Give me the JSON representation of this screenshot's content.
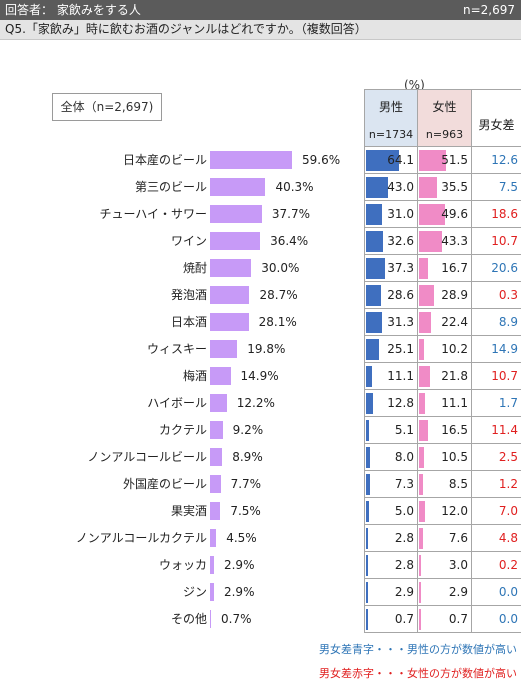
{
  "header": {
    "left": "回答者： 家飲みをする人",
    "right": "n=2,697"
  },
  "question": "Q5.「家飲み」時に飲むお酒のジャンルはどれですか。（複数回答）",
  "total_box": "全体（n=2,697)",
  "unit_label": "(%)",
  "table_header": {
    "male": "男性",
    "male_n": "n=1734",
    "female": "女性",
    "female_n": "n=963",
    "diff": "男女差"
  },
  "colors": {
    "total_bar": "#c79af7",
    "male_bar": "#3f6fbf",
    "female_bar": "#f08bc6",
    "diff_male": "#2e75b6",
    "diff_female": "#e02020"
  },
  "notes": {
    "blue": "男女差青字・・・男性の方が数値が高い",
    "red": "男女差赤字・・・女性の方が数値が高い"
  },
  "chart_data": {
    "type": "bar",
    "categories": [
      "日本産のビール",
      "第三のビール",
      "チューハイ・サワー",
      "ワイン",
      "焼酎",
      "発泡酒",
      "日本酒",
      "ウィスキー",
      "梅酒",
      "ハイボール",
      "カクテル",
      "ノンアルコールビール",
      "外国産のビール",
      "果実酒",
      "ノンアルコールカクテル",
      "ウォッカ",
      "ジン",
      "その他"
    ],
    "series": [
      {
        "values": [
          59.6,
          40.3,
          37.7,
          36.4,
          30.0,
          28.7,
          28.1,
          19.8,
          14.9,
          12.2,
          9.2,
          8.9,
          7.7,
          7.5,
          4.5,
          2.9,
          2.9,
          0.7
        ],
        "labels": [
          "59.6%",
          "40.3%",
          "37.7%",
          "36.4%",
          "30.0%",
          "28.7%",
          "28.1%",
          "19.8%",
          "14.9%",
          "12.2%",
          "9.2%",
          "8.9%",
          "7.7%",
          "7.5%",
          "4.5%",
          "2.9%",
          "2.9%",
          "0.7%"
        ]
      },
      {
        "name": "男性",
        "values": [
          64.1,
          43.0,
          31.0,
          32.6,
          37.3,
          28.6,
          31.3,
          25.1,
          11.1,
          12.8,
          5.1,
          8.0,
          7.3,
          5.0,
          2.8,
          2.8,
          2.9,
          0.7
        ],
        "labels": [
          "64.1",
          "43.0",
          "31.0",
          "32.6",
          "37.3",
          "28.6",
          "31.3",
          "25.1",
          "11.1",
          "12.8",
          "5.1",
          "8.0",
          "7.3",
          "5.0",
          "2.8",
          "2.8",
          "2.9",
          "0.7"
        ]
      },
      {
        "name": "女性",
        "values": [
          51.5,
          35.5,
          49.6,
          43.3,
          16.7,
          28.9,
          22.4,
          10.2,
          21.8,
          11.1,
          16.5,
          10.5,
          8.5,
          12.0,
          7.6,
          3.0,
          2.9,
          0.7
        ],
        "labels": [
          "51.5",
          "35.5",
          "49.6",
          "43.3",
          "16.7",
          "28.9",
          "22.4",
          "10.2",
          "21.8",
          "11.1",
          "16.5",
          "10.5",
          "8.5",
          "12.0",
          "7.6",
          "3.0",
          "2.9",
          "0.7"
        ]
      },
      {
        "name": "男女差",
        "values": [
          12.6,
          7.5,
          18.6,
          10.7,
          20.6,
          0.3,
          8.9,
          14.9,
          10.7,
          1.7,
          11.4,
          2.5,
          1.2,
          7.0,
          4.8,
          0.2,
          0.0,
          0.0
        ],
        "labels": [
          "12.6",
          "7.5",
          "18.6",
          "10.7",
          "20.6",
          "0.3",
          "8.9",
          "14.9",
          "10.7",
          "1.7",
          "11.4",
          "2.5",
          "1.2",
          "7.0",
          "4.8",
          "0.2",
          "0.0",
          "0.0"
        ],
        "higher": [
          "male",
          "male",
          "female",
          "female",
          "male",
          "female",
          "male",
          "male",
          "female",
          "male",
          "female",
          "female",
          "female",
          "female",
          "female",
          "female",
          "male",
          "male"
        ]
      }
    ],
    "xlim": [
      0,
      100
    ],
    "grid": false,
    "legend": "none"
  }
}
